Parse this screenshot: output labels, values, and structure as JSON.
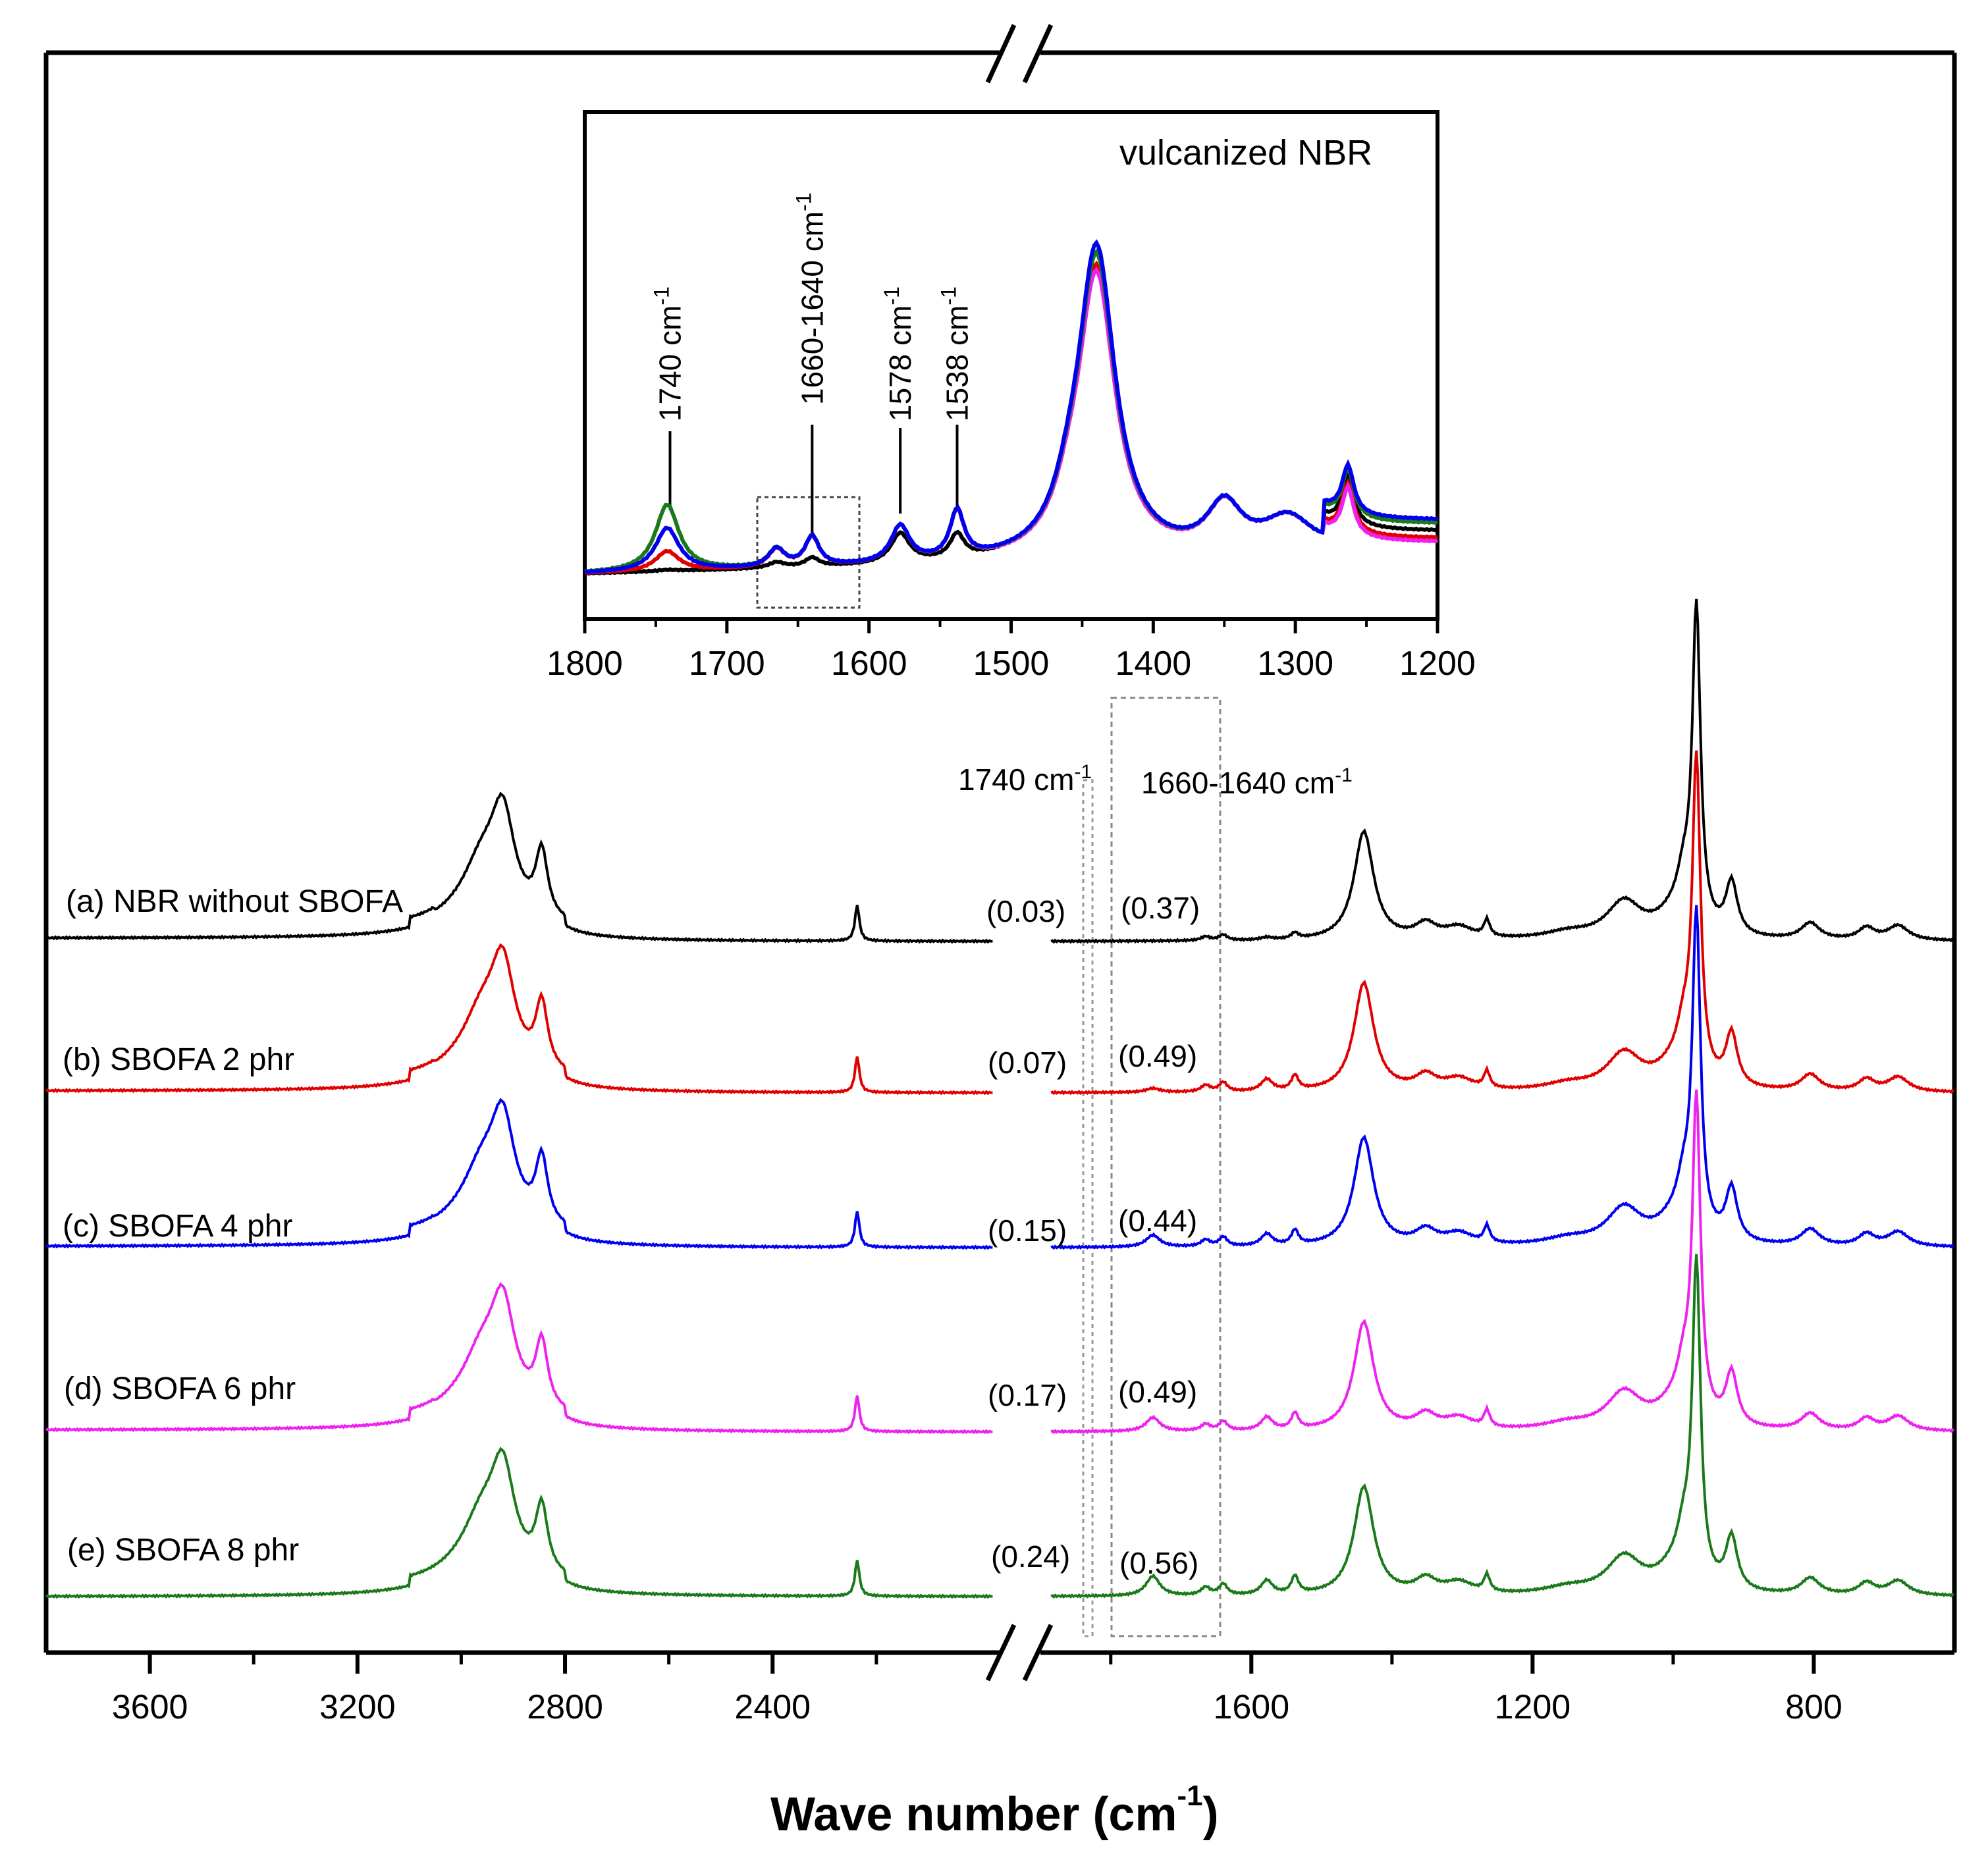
{
  "chart_data": {
    "main": {
      "type": "line",
      "title": "",
      "xlabel": "Wave number (cm",
      "xlabel_sup": "-1",
      "xlabel_close": ")",
      "ylabel": "",
      "x_axis_break": true,
      "left_segment": {
        "xlim": [
          3800,
          1960
        ],
        "ticks": [
          3600,
          3200,
          2800,
          2400
        ],
        "tick_labels": [
          "3600",
          "3200",
          "2800",
          "2400"
        ]
      },
      "right_segment": {
        "xlim": [
          1900,
          600
        ],
        "ticks": [
          1600,
          1200,
          800
        ],
        "tick_labels": [
          "1600",
          "1200",
          "800"
        ]
      },
      "series": [
        {
          "id": "a",
          "name": "(a) NBR without SBOFA",
          "color": "#000000",
          "ratio_1740": "(0.03)",
          "ratio_1650": "(0.37)"
        },
        {
          "id": "b",
          "name": "(b) SBOFA 2 phr",
          "color": "#e00000",
          "ratio_1740": "(0.07)",
          "ratio_1650": "(0.49)"
        },
        {
          "id": "c",
          "name": "(c) SBOFA 4 phr",
          "color": "#0000ee",
          "ratio_1740": "(0.15)",
          "ratio_1650": "(0.44)"
        },
        {
          "id": "d",
          "name": "(d) SBOFA 6 phr",
          "color": "#ee22ee",
          "ratio_1740": "(0.17)",
          "ratio_1650": "(0.49)"
        },
        {
          "id": "e",
          "name": "(e) SBOFA 8 phr",
          "color": "#1a7a1a",
          "ratio_1740": "(0.24)",
          "ratio_1650": "(0.56)"
        }
      ],
      "annotations": {
        "band_1740": {
          "label": "1740 cm",
          "sup": "-1"
        },
        "band_1650": {
          "label": "1660-1640 cm",
          "sup": "-1"
        }
      }
    },
    "inset": {
      "type": "line",
      "title": "vulcanized NBR",
      "xlim": [
        1800,
        1200
      ],
      "ticks": [
        1800,
        1700,
        1600,
        1500,
        1400,
        1300,
        1200
      ],
      "tick_labels": [
        "1800",
        "1700",
        "1600",
        "1500",
        "1400",
        "1300",
        "1200"
      ],
      "peak_labels": [
        {
          "x": 1740,
          "label": "1740 cm",
          "sup": "-1"
        },
        {
          "x": 1640,
          "label": "1660-1640 cm",
          "sup": "-1"
        },
        {
          "x": 1578,
          "label": "1578 cm",
          "sup": "-1"
        },
        {
          "x": 1538,
          "label": "1538 cm",
          "sup": "-1"
        }
      ]
    }
  }
}
